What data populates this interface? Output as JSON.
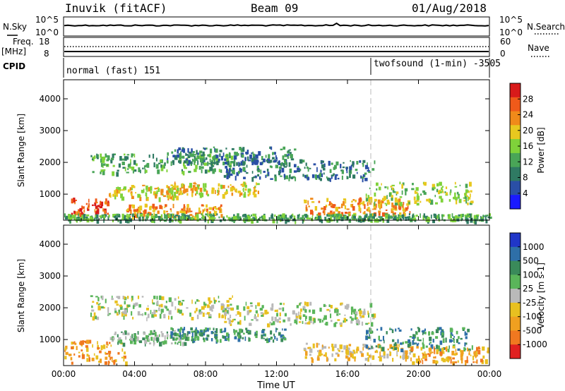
{
  "header": {
    "station": "Inuvik (fitACF)",
    "beam": "Beam 09",
    "date": "01/Aug/2018"
  },
  "top_panels": {
    "nsky_label": "N.Sky",
    "nsearch_label": "N.Search",
    "noise_ticks_left": [
      "10^5",
      "10^0"
    ],
    "noise_ticks_right": [
      "10^5",
      "10^0"
    ],
    "freq_label_1": "Freq.",
    "freq_label_2": "[MHz]",
    "freq_ticks": [
      "18",
      "8"
    ],
    "nave_label": "Nave",
    "nave_ticks": [
      "60",
      "0"
    ],
    "cpid_label": "CPID",
    "cpid_segments": [
      {
        "label": "normal (fast) 151",
        "start_hour": 0
      },
      {
        "label": "twofsound (1-min) -3505",
        "start_hour": 17.4
      }
    ]
  },
  "colors": {
    "power_scale": [
      "#1a1aff",
      "#2a4fa6",
      "#2f7a63",
      "#49a557",
      "#7fd23a",
      "#e8c81f",
      "#f08a1a",
      "#ef5a1a",
      "#d81a1a"
    ],
    "velocity_scale": [
      "#2036c8",
      "#2e6fa8",
      "#3a8a5a",
      "#5ab55a",
      "#b9b9b9",
      "#e8c020",
      "#f0a020",
      "#f07820",
      "#e02020"
    ]
  },
  "chart_data": [
    {
      "type": "heatmap",
      "panel": "power",
      "xlabel": "",
      "ylabel": "Slant Range [km]",
      "xlim": [
        "00:00",
        "24:00"
      ],
      "ylim": [
        180,
        4600
      ],
      "yticks": [
        "1000",
        "2000",
        "3000",
        "4000"
      ],
      "colorbar_label": "Power [dB]",
      "colorbar_ticks": [
        "4",
        "8",
        "12",
        "16",
        "20",
        "24",
        "28"
      ],
      "colorbar_range": [
        0,
        30
      ],
      "scatter_bands": [
        {
          "t_start": 0.3,
          "t_end": 2.5,
          "r_low": 400,
          "r_high": 900,
          "power": 26
        },
        {
          "t_start": 2.5,
          "t_end": 6.5,
          "r_low": 900,
          "r_high": 1300,
          "power": 20
        },
        {
          "t_start": 3.5,
          "t_end": 9.0,
          "r_low": 300,
          "r_high": 700,
          "power": 24
        },
        {
          "t_start": 6.0,
          "t_end": 11.0,
          "r_low": 1000,
          "r_high": 1400,
          "power": 18
        },
        {
          "t_start": 1.5,
          "t_end": 9.5,
          "r_low": 1700,
          "r_high": 2300,
          "power": 12
        },
        {
          "t_start": 5.8,
          "t_end": 13.0,
          "r_low": 2000,
          "r_high": 2500,
          "power": 8
        },
        {
          "t_start": 9.0,
          "t_end": 17.5,
          "r_low": 1500,
          "r_high": 2100,
          "power": 6
        },
        {
          "t_start": 13.5,
          "t_end": 19.5,
          "r_low": 400,
          "r_high": 900,
          "power": 22
        },
        {
          "t_start": 17.0,
          "t_end": 23.0,
          "r_low": 700,
          "r_high": 1400,
          "power": 14
        },
        {
          "t_start": 0.0,
          "t_end": 24.0,
          "r_low": 200,
          "r_high": 400,
          "power": 10
        }
      ]
    },
    {
      "type": "heatmap",
      "panel": "velocity",
      "xlabel": "Time UT",
      "ylabel": "Slant Range [km]",
      "xlim": [
        "00:00",
        "24:00"
      ],
      "ylim": [
        180,
        4600
      ],
      "xticks": [
        "00:00",
        "04:00",
        "08:00",
        "12:00",
        "16:00",
        "20:00",
        "00:00"
      ],
      "yticks": [
        "1000",
        "2000",
        "3000",
        "4000"
      ],
      "colorbar_label": "Velocity [m s-1]",
      "colorbar_ticks": [
        "1000",
        "500",
        "100",
        "25",
        "-25",
        "-100",
        "-500",
        "-1000"
      ],
      "scatter_bands": [
        {
          "t_start": 0.0,
          "t_end": 3.5,
          "r_low": 300,
          "r_high": 1000,
          "velocity": -300
        },
        {
          "t_start": 2.5,
          "t_end": 7.0,
          "r_low": 900,
          "r_high": 1300,
          "velocity": 60
        },
        {
          "t_start": 6.0,
          "t_end": 12.5,
          "r_low": 1000,
          "r_high": 1400,
          "velocity": 200
        },
        {
          "t_start": 1.5,
          "t_end": 9.5,
          "r_low": 1700,
          "r_high": 2400,
          "velocity": 0
        },
        {
          "t_start": 9.0,
          "t_end": 17.5,
          "r_low": 1500,
          "r_high": 2200,
          "velocity": 0
        },
        {
          "t_start": 13.5,
          "t_end": 19.5,
          "r_low": 400,
          "r_high": 900,
          "velocity": -80
        },
        {
          "t_start": 17.0,
          "t_end": 23.0,
          "r_low": 700,
          "r_high": 1400,
          "velocity": 150
        },
        {
          "t_start": 19.5,
          "t_end": 24.0,
          "r_low": 300,
          "r_high": 800,
          "velocity": -150
        }
      ]
    }
  ]
}
